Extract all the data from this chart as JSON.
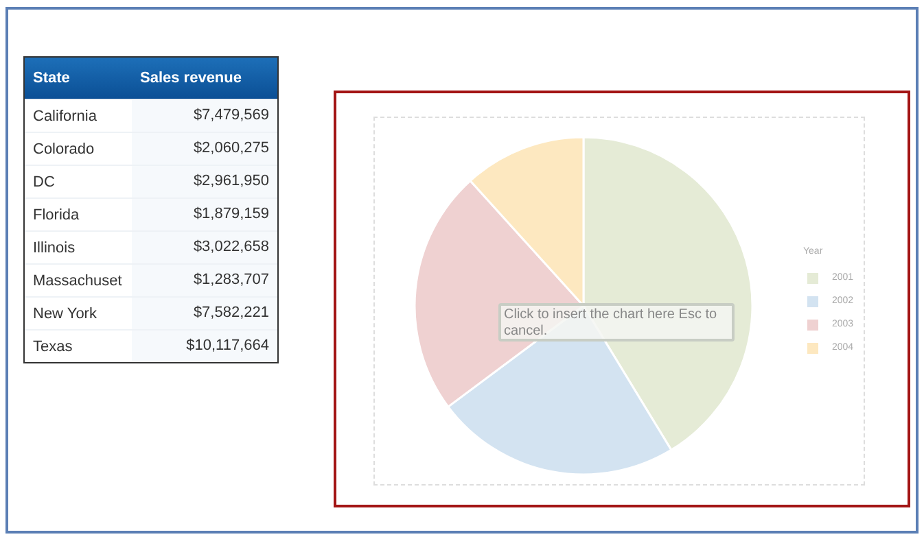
{
  "chart_data": [
    {
      "type": "other",
      "xlabel": "State",
      "ylabel": "Sales revenue",
      "categories": [
        "California",
        "Colorado",
        "DC",
        "Florida",
        "Illinois",
        "Massachuset",
        "New York",
        "Texas"
      ],
      "value_labels": [
        "$7,479,569",
        "$2,060,275",
        "$2,961,950",
        "$1,879,159",
        "$3,022,658",
        "$1,283,707",
        "$7,582,221",
        "$10,117,664"
      ]
    },
    {
      "type": "pie",
      "categories": [
        "2001",
        "2002",
        "2003",
        "2004"
      ],
      "values": [
        41.3,
        23.5,
        23.5,
        11.7
      ],
      "colors": [
        "#e5ebd6",
        "#d3e3f1",
        "#efd1d1",
        "#fde8c0"
      ],
      "legend_title": "Year",
      "legend": "right",
      "annotations": [
        "Click to insert the chart here Esc to cancel."
      ]
    }
  ]
}
